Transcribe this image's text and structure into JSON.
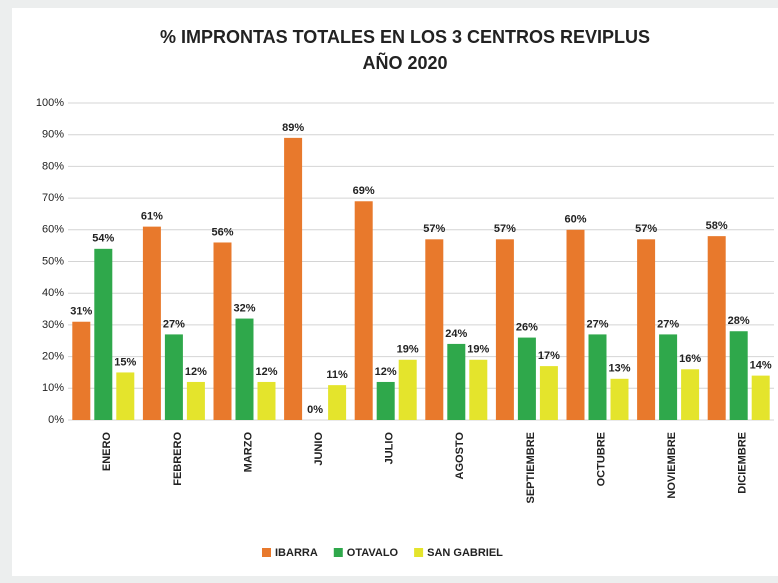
{
  "chart_data": {
    "type": "bar",
    "title": [
      "% IMPRONTAS TOTALES EN LOS 3 CENTROS REVIPLUS",
      "AÑO 2020"
    ],
    "categories": [
      "ENERO",
      "FEBRERO",
      "MARZO",
      "JUNIO",
      "JULIO",
      "AGOSTO",
      "SEPTIEMBRE",
      "OCTUBRE",
      "NOVIEMBRE",
      "DICIEMBRE"
    ],
    "series": [
      {
        "name": "IBARRA",
        "color": "#e8792c",
        "values": [
          31,
          61,
          56,
          89,
          69,
          57,
          57,
          60,
          57,
          58
        ],
        "value_labels": [
          "31%",
          "61%",
          "56%",
          "89%",
          "69%",
          "57%",
          "57%",
          "60%",
          "57%",
          "58%"
        ]
      },
      {
        "name": "OTAVALO",
        "color": "#2fa84b",
        "values": [
          54,
          27,
          32,
          0,
          12,
          24,
          26,
          27,
          27,
          28
        ],
        "value_labels": [
          "54%",
          "27%",
          "32%",
          "0%",
          "12%",
          "24%",
          "26%",
          "27%",
          "27%",
          "28%"
        ]
      },
      {
        "name": "SAN GABRIEL",
        "color": "#e4e42c",
        "values": [
          15,
          12,
          12,
          11,
          19,
          19,
          17,
          13,
          16,
          14
        ],
        "value_labels": [
          "15%",
          "12%",
          "12%",
          "11%",
          "19%",
          "19%",
          "17%",
          "13%",
          "16%",
          "14%"
        ]
      }
    ],
    "ylim": [
      0,
      100
    ],
    "yticks": [
      {
        "value": 0,
        "label": "0%"
      },
      {
        "value": 10,
        "label": "10%"
      },
      {
        "value": 20,
        "label": "20%"
      },
      {
        "value": 30,
        "label": "30%"
      },
      {
        "value": 40,
        "label": "40%"
      },
      {
        "value": 50,
        "label": "50%"
      },
      {
        "value": 60,
        "label": "60%"
      },
      {
        "value": 70,
        "label": "70%"
      },
      {
        "value": 80,
        "label": "80%"
      },
      {
        "value": 90,
        "label": "90%"
      },
      {
        "value": 100,
        "label": "100%"
      }
    ],
    "grid": true,
    "legend": "bottom"
  }
}
